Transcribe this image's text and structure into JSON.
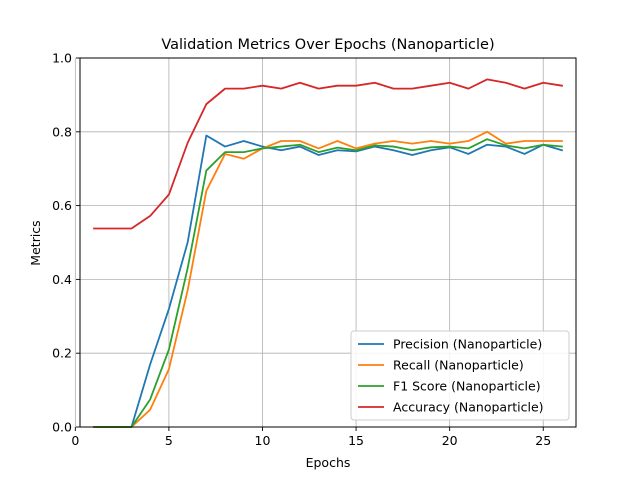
{
  "chart_data": {
    "type": "line",
    "title": "Validation Metrics Over Epochs (Nanoparticle)",
    "xlabel": "Epochs",
    "ylabel": "Metrics",
    "xlim": [
      0.25,
      26.75
    ],
    "ylim": [
      0,
      1.0
    ],
    "xticks": [
      0,
      5,
      10,
      15,
      20,
      25
    ],
    "yticks": [
      0.0,
      0.2,
      0.4,
      0.6,
      0.8,
      1.0
    ],
    "xtick_labels": [
      "0",
      "5",
      "10",
      "15",
      "20",
      "25"
    ],
    "ytick_labels": [
      "0.0",
      "0.2",
      "0.4",
      "0.6",
      "0.8",
      "1.0"
    ],
    "grid": true,
    "legend_position": "lower-right",
    "x": [
      1,
      2,
      3,
      4,
      5,
      6,
      7,
      8,
      9,
      10,
      11,
      12,
      13,
      14,
      15,
      16,
      17,
      18,
      19,
      20,
      21,
      22,
      23,
      24,
      25,
      26
    ],
    "series": [
      {
        "name": "Precision (Nanoparticle)",
        "color": "#1f77b4",
        "values": [
          0.0,
          0.0,
          0.0,
          0.17,
          0.32,
          0.5,
          0.79,
          0.76,
          0.775,
          0.76,
          0.75,
          0.76,
          0.737,
          0.75,
          0.747,
          0.76,
          0.75,
          0.737,
          0.75,
          0.758,
          0.74,
          0.765,
          0.76,
          0.74,
          0.765,
          0.75
        ]
      },
      {
        "name": "Recall (Nanoparticle)",
        "color": "#ff7f0e",
        "values": [
          0.0,
          0.0,
          0.0,
          0.047,
          0.157,
          0.37,
          0.64,
          0.74,
          0.727,
          0.755,
          0.775,
          0.775,
          0.755,
          0.775,
          0.755,
          0.768,
          0.775,
          0.768,
          0.775,
          0.768,
          0.775,
          0.8,
          0.768,
          0.775,
          0.775,
          0.775
        ]
      },
      {
        "name": "F1 Score (Nanoparticle)",
        "color": "#2ca02c",
        "values": [
          0.0,
          0.0,
          0.0,
          0.075,
          0.21,
          0.43,
          0.695,
          0.745,
          0.745,
          0.755,
          0.76,
          0.765,
          0.745,
          0.757,
          0.75,
          0.763,
          0.76,
          0.75,
          0.758,
          0.76,
          0.755,
          0.78,
          0.763,
          0.755,
          0.765,
          0.76
        ]
      },
      {
        "name": "Accuracy (Nanoparticle)",
        "color": "#d62728",
        "values": [
          0.538,
          0.538,
          0.538,
          0.572,
          0.63,
          0.77,
          0.875,
          0.917,
          0.917,
          0.925,
          0.917,
          0.933,
          0.917,
          0.925,
          0.925,
          0.933,
          0.917,
          0.917,
          0.925,
          0.933,
          0.917,
          0.942,
          0.933,
          0.917,
          0.933,
          0.925
        ]
      }
    ]
  }
}
